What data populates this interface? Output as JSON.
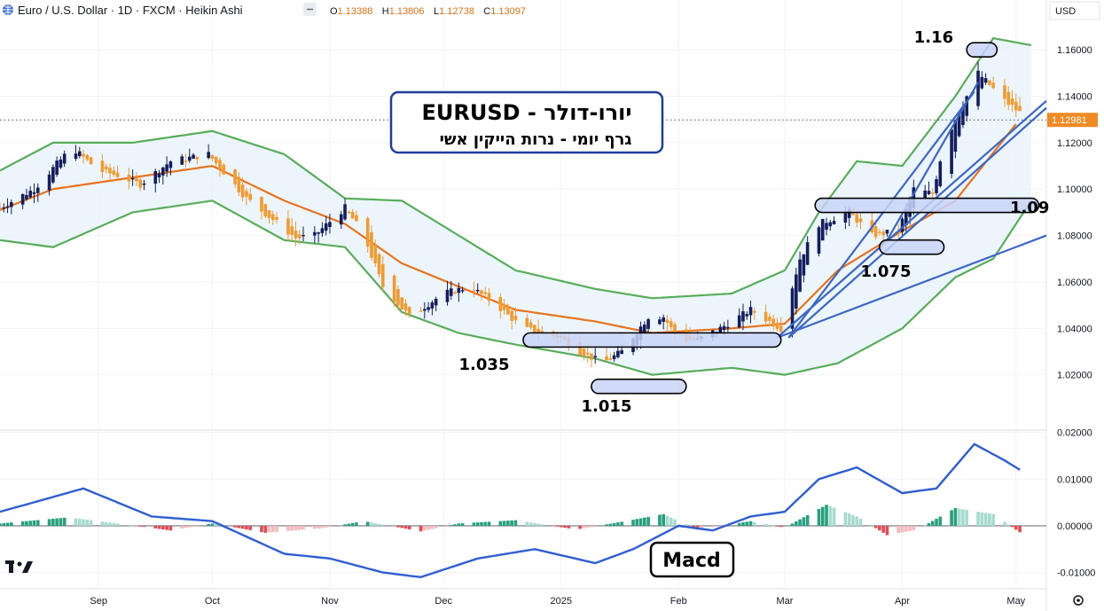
{
  "header": {
    "symbol": "Euro / U.S. Dollar · 1D · FXCM · Heikin Ashi",
    "ohlc": [
      {
        "label": "O",
        "value": "1.13388"
      },
      {
        "label": "H",
        "value": "1.13806"
      },
      {
        "label": "L",
        "value": "1.12738"
      },
      {
        "label": "C",
        "value": "1.13097"
      }
    ],
    "currency": "USD",
    "logo_text": "TV"
  },
  "colors": {
    "bull": "#131e5e",
    "bear": "#f29a2e",
    "basis": "#e8731e",
    "bands": "#58ad5a",
    "trend": "#3b66c4",
    "macd": "#2e5ecf",
    "hist_pos": "#26a07e",
    "hist_neg": "#e24b52",
    "box_fill": "#c9d4f7"
  },
  "chart_data": [
    {
      "type": "candlestick",
      "name": "EURUSD",
      "x_range": [
        "2024-08-06",
        "2025-05-09"
      ],
      "ylim": [
        1.0,
        1.17
      ],
      "y_ticks": [
        "1.16000",
        "1.14000",
        "1.12000",
        "1.10000",
        "1.08000",
        "1.06000",
        "1.04000",
        "1.02000"
      ],
      "x_ticks": [
        {
          "date": "2024-09-01",
          "label": "Sep"
        },
        {
          "date": "2024-10-01",
          "label": "Oct"
        },
        {
          "date": "2024-11-01",
          "label": "Nov"
        },
        {
          "date": "2024-12-01",
          "label": "Dec"
        },
        {
          "date": "2025-01-01",
          "label": "2025"
        },
        {
          "date": "2025-02-01",
          "label": "Feb"
        },
        {
          "date": "2025-03-01",
          "label": "Mar"
        },
        {
          "date": "2025-04-01",
          "label": "Apr"
        },
        {
          "date": "2025-05-01",
          "label": "May"
        }
      ],
      "last_price": "1.12981",
      "price_key": [
        [
          "2024-08-06",
          1.092
        ],
        [
          "2024-08-15",
          1.1
        ],
        [
          "2024-08-25",
          1.118
        ],
        [
          "2024-09-01",
          1.108
        ],
        [
          "2024-09-06",
          1.106
        ],
        [
          "2024-09-12",
          1.102
        ],
        [
          "2024-09-20",
          1.112
        ],
        [
          "2024-09-30",
          1.115
        ],
        [
          "2024-10-10",
          1.096
        ],
        [
          "2024-10-23",
          1.079
        ],
        [
          "2024-10-28",
          1.08
        ],
        [
          "2024-11-05",
          1.092
        ],
        [
          "2024-11-10",
          1.08
        ],
        [
          "2024-11-15",
          1.058
        ],
        [
          "2024-11-22",
          1.045
        ],
        [
          "2024-12-01",
          1.055
        ],
        [
          "2024-12-08",
          1.058
        ],
        [
          "2024-12-15",
          1.05
        ],
        [
          "2024-12-22",
          1.04
        ],
        [
          "2025-01-01",
          1.036
        ],
        [
          "2025-01-06",
          1.03
        ],
        [
          "2025-01-12",
          1.025
        ],
        [
          "2025-01-17",
          1.03
        ],
        [
          "2025-01-24",
          1.045
        ],
        [
          "2025-01-28",
          1.045
        ],
        [
          "2025-02-01",
          1.035
        ],
        [
          "2025-02-06",
          1.035
        ],
        [
          "2025-02-12",
          1.04
        ],
        [
          "2025-02-20",
          1.048
        ],
        [
          "2025-02-28",
          1.04
        ],
        [
          "2025-03-05",
          1.07
        ],
        [
          "2025-03-10",
          1.085
        ],
        [
          "2025-03-18",
          1.09
        ],
        [
          "2025-03-24",
          1.08
        ],
        [
          "2025-03-31",
          1.082
        ],
        [
          "2025-04-04",
          1.1
        ],
        [
          "2025-04-09",
          1.098
        ],
        [
          "2025-04-12",
          1.12
        ],
        [
          "2025-04-21",
          1.15
        ],
        [
          "2025-04-28",
          1.138
        ],
        [
          "2025-05-02",
          1.133
        ]
      ],
      "upper_band_key": [
        [
          "2024-08-06",
          1.108
        ],
        [
          "2024-08-20",
          1.12
        ],
        [
          "2024-09-10",
          1.12
        ],
        [
          "2024-10-01",
          1.125
        ],
        [
          "2024-10-20",
          1.115
        ],
        [
          "2024-11-05",
          1.096
        ],
        [
          "2024-11-20",
          1.095
        ],
        [
          "2024-12-05",
          1.08
        ],
        [
          "2024-12-20",
          1.065
        ],
        [
          "2025-01-10",
          1.057
        ],
        [
          "2025-01-25",
          1.053
        ],
        [
          "2025-02-15",
          1.055
        ],
        [
          "2025-03-01",
          1.065
        ],
        [
          "2025-03-10",
          1.09
        ],
        [
          "2025-03-20",
          1.112
        ],
        [
          "2025-04-01",
          1.11
        ],
        [
          "2025-04-15",
          1.14
        ],
        [
          "2025-04-25",
          1.165
        ],
        [
          "2025-05-05",
          1.162
        ]
      ],
      "basis_key": [
        [
          "2024-08-06",
          1.091
        ],
        [
          "2024-08-20",
          1.1
        ],
        [
          "2024-09-10",
          1.105
        ],
        [
          "2024-10-01",
          1.11
        ],
        [
          "2024-10-20",
          1.095
        ],
        [
          "2024-11-05",
          1.085
        ],
        [
          "2024-11-20",
          1.068
        ],
        [
          "2024-12-05",
          1.058
        ],
        [
          "2024-12-20",
          1.048
        ],
        [
          "2025-01-10",
          1.043
        ],
        [
          "2025-01-25",
          1.038
        ],
        [
          "2025-02-15",
          1.04
        ],
        [
          "2025-03-01",
          1.042
        ],
        [
          "2025-03-15",
          1.065
        ],
        [
          "2025-04-01",
          1.082
        ],
        [
          "2025-04-15",
          1.095
        ],
        [
          "2025-05-01",
          1.128
        ]
      ],
      "lower_band_key": [
        [
          "2024-08-06",
          1.078
        ],
        [
          "2024-08-20",
          1.075
        ],
        [
          "2024-09-10",
          1.09
        ],
        [
          "2024-10-01",
          1.095
        ],
        [
          "2024-10-20",
          1.078
        ],
        [
          "2024-11-05",
          1.075
        ],
        [
          "2024-11-20",
          1.047
        ],
        [
          "2024-12-05",
          1.038
        ],
        [
          "2024-12-20",
          1.033
        ],
        [
          "2025-01-10",
          1.027
        ],
        [
          "2025-01-25",
          1.02
        ],
        [
          "2025-02-15",
          1.023
        ],
        [
          "2025-03-01",
          1.02
        ],
        [
          "2025-03-15",
          1.025
        ],
        [
          "2025-04-01",
          1.04
        ],
        [
          "2025-04-15",
          1.062
        ],
        [
          "2025-04-25",
          1.07
        ],
        [
          "2025-05-05",
          1.095
        ]
      ]
    },
    {
      "type": "line+histogram",
      "name": "Macd",
      "ylim": [
        -0.0135,
        0.0205
      ],
      "y_ticks": [
        "0.02000",
        "0.01000",
        "0.00000",
        "-0.01000"
      ],
      "macd_key": [
        [
          "2024-08-06",
          0.003
        ],
        [
          "2024-08-28",
          0.008
        ],
        [
          "2024-09-15",
          0.002
        ],
        [
          "2024-10-01",
          0.001
        ],
        [
          "2024-10-20",
          -0.006
        ],
        [
          "2024-11-01",
          -0.007
        ],
        [
          "2024-11-15",
          -0.01
        ],
        [
          "2024-11-25",
          -0.011
        ],
        [
          "2024-12-10",
          -0.007
        ],
        [
          "2024-12-25",
          -0.005
        ],
        [
          "2025-01-10",
          -0.008
        ],
        [
          "2025-01-20",
          -0.005
        ],
        [
          "2025-02-01",
          0.0
        ],
        [
          "2025-02-10",
          -0.001
        ],
        [
          "2025-02-20",
          0.002
        ],
        [
          "2025-03-01",
          0.003
        ],
        [
          "2025-03-10",
          0.01
        ],
        [
          "2025-03-20",
          0.0125
        ],
        [
          "2025-04-01",
          0.007
        ],
        [
          "2025-04-10",
          0.008
        ],
        [
          "2025-04-20",
          0.0175
        ],
        [
          "2025-04-28",
          0.014
        ],
        [
          "2025-05-02",
          0.012
        ]
      ],
      "hist_key": [
        [
          "2024-08-06",
          0.0005
        ],
        [
          "2024-08-24",
          0.0018
        ],
        [
          "2024-09-08",
          0.0003
        ],
        [
          "2024-09-20",
          -0.001
        ],
        [
          "2024-10-01",
          0.0005
        ],
        [
          "2024-10-15",
          -0.0015
        ],
        [
          "2024-10-30",
          -0.0005
        ],
        [
          "2024-11-10",
          0.001
        ],
        [
          "2024-11-25",
          -0.0012
        ],
        [
          "2024-12-05",
          0.0005
        ],
        [
          "2024-12-20",
          0.0012
        ],
        [
          "2025-01-05",
          -0.0008
        ],
        [
          "2025-01-18",
          0.001
        ],
        [
          "2025-01-28",
          0.0025
        ],
        [
          "2025-02-06",
          -0.0008
        ],
        [
          "2025-02-20",
          0.001
        ],
        [
          "2025-03-01",
          -0.0004
        ],
        [
          "2025-03-12",
          0.0045
        ],
        [
          "2025-03-20",
          0.002
        ],
        [
          "2025-03-28",
          -0.002
        ],
        [
          "2025-04-05",
          -0.0008
        ],
        [
          "2025-04-15",
          0.0038
        ],
        [
          "2025-04-25",
          0.0025
        ],
        [
          "2025-05-04",
          -0.0025
        ]
      ]
    }
  ],
  "annotations": {
    "title_he": "יורו-דולר - EURUSD",
    "subtitle_he": "גרף  יומי   -  נרות הייקין אשי",
    "macd_label": "Macd",
    "level_labels": [
      "1.16",
      "1.09",
      "1.075",
      "1.035",
      "1.015"
    ]
  }
}
